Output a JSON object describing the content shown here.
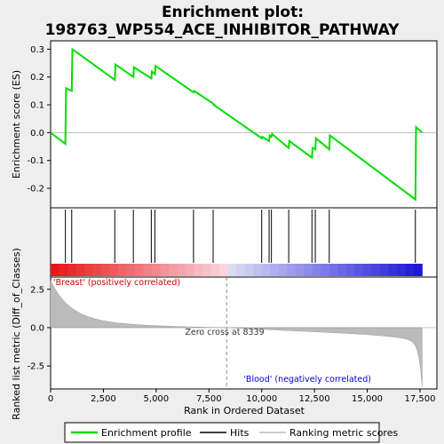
{
  "chart_data": {
    "type": "line",
    "title_line1": "Enrichment plot:",
    "title_line2": "198763_WP554_ACE_INHIBITOR_PATHWAY",
    "top_panel": {
      "ylabel": "Enrichment score (ES)",
      "ylim": [
        -0.27,
        0.33
      ],
      "yticks": [
        "-0.2",
        "-0.1",
        "0.0",
        "0.1",
        "0.2",
        "0.3"
      ],
      "ytick_values": [
        -0.2,
        -0.1,
        0.0,
        0.1,
        0.2,
        0.3
      ],
      "line_color": "#00dd00",
      "series": [
        {
          "x": [
            0,
            700,
            730,
            1000,
            1030,
            3040,
            3070,
            3920,
            3950,
            4770,
            4800,
            4940,
            4970,
            6770,
            6800,
            7700,
            7730,
            10000,
            10030,
            10350,
            10380,
            10460,
            10490,
            11280,
            11310,
            12380,
            12410,
            12540,
            12570,
            13200,
            13230,
            17280,
            17310,
            17600
          ],
          "y": [
            0.0,
            -0.04,
            0.16,
            0.15,
            0.3,
            0.19,
            0.245,
            0.2,
            0.235,
            0.195,
            0.22,
            0.21,
            0.24,
            0.145,
            0.15,
            0.105,
            0.1,
            -0.02,
            -0.015,
            -0.03,
            -0.01,
            -0.015,
            -0.005,
            -0.055,
            -0.03,
            -0.09,
            -0.055,
            -0.06,
            -0.02,
            -0.06,
            -0.01,
            -0.24,
            0.02,
            0.0
          ]
        }
      ]
    },
    "hits_panel": {
      "hit_positions": [
        700,
        1000,
        3040,
        3920,
        4770,
        4940,
        6770,
        7700,
        10000,
        10350,
        10460,
        11280,
        12380,
        12540,
        13200,
        17280
      ]
    },
    "bottom_panel": {
      "ylabel": "Ranked list metric (Diff_of_Classes)",
      "xlabel": "Rank in Ordered Dataset",
      "ylim": [
        -4.0,
        3.3
      ],
      "yticks": [
        "-2.5",
        "0.0",
        "2.5"
      ],
      "ytick_values": [
        -2.5,
        0.0,
        2.5
      ],
      "xticks": [
        "0",
        "2,500",
        "5,000",
        "7,500",
        "10,000",
        "12,500",
        "15,000",
        "17,500"
      ],
      "xtick_values": [
        0,
        2500,
        5000,
        7500,
        10000,
        12500,
        15000,
        17500
      ],
      "xlim": [
        0,
        18300
      ],
      "n_genes": 17600,
      "zero_cross": 8339,
      "zero_cross_label": "Zero cross at 8339",
      "positive_label": "'Breast' (positively correlated)",
      "negative_label": "'Blood' (negatively correlated)",
      "positive_color": "#cc0000",
      "negative_color": "#0000cc"
    },
    "legend": {
      "items": [
        {
          "label": "Enrichment profile",
          "color": "#00dd00"
        },
        {
          "label": "Hits",
          "color": "#000000"
        },
        {
          "label": "Ranking metric scores",
          "color": "#bbbbbb"
        }
      ]
    }
  }
}
